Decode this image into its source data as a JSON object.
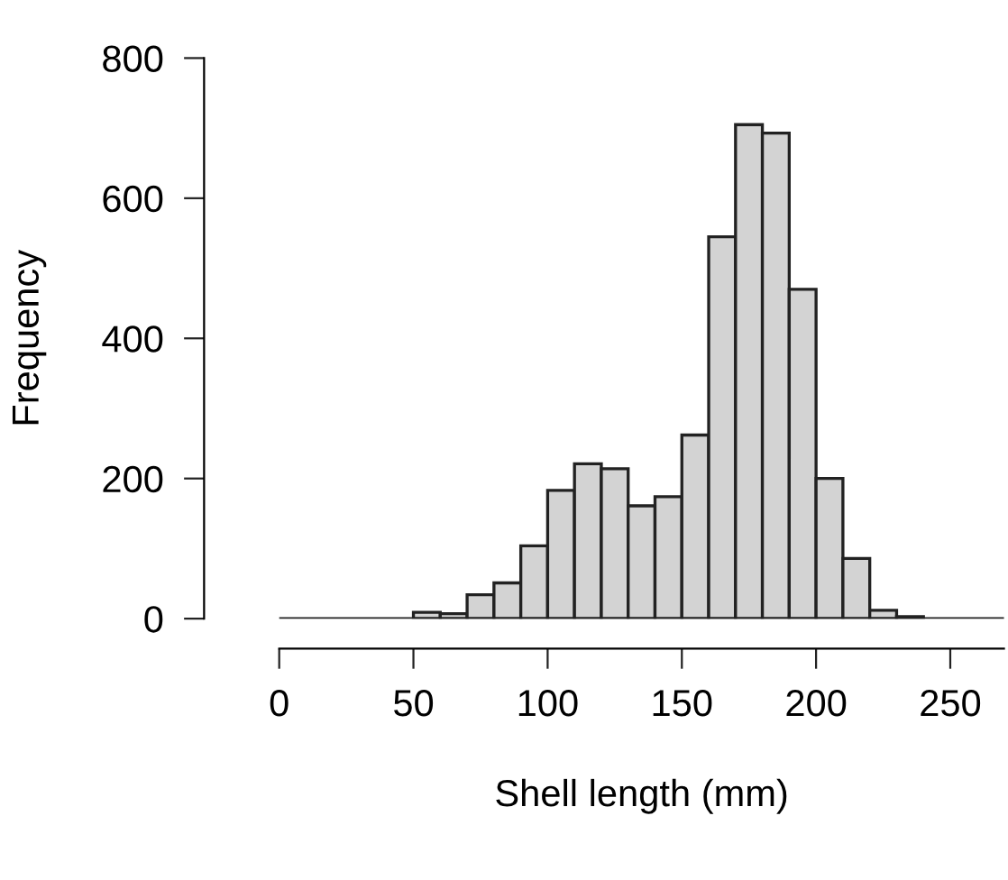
{
  "chart_data": {
    "type": "histogram",
    "xlabel": "Shell length (mm)",
    "ylabel": "Frequency",
    "bins": [
      0,
      10,
      20,
      30,
      40,
      50,
      60,
      70,
      80,
      90,
      100,
      110,
      120,
      130,
      140,
      150,
      160,
      170,
      180,
      190,
      200,
      210,
      220,
      230,
      240,
      250,
      260,
      270
    ],
    "values": [
      0,
      0,
      0,
      0,
      0,
      9,
      7,
      34,
      51,
      104,
      183,
      221,
      214,
      161,
      174,
      262,
      545,
      705,
      693,
      470,
      200,
      86,
      12,
      3,
      0,
      0,
      0
    ],
    "color": "#d3d3d3",
    "xlim": [
      0,
      270
    ],
    "ylim": [
      0,
      800
    ],
    "xticks": [
      0,
      50,
      100,
      150,
      200,
      250
    ],
    "yticks": [
      0,
      200,
      400,
      600,
      800
    ],
    "grid": false
  }
}
